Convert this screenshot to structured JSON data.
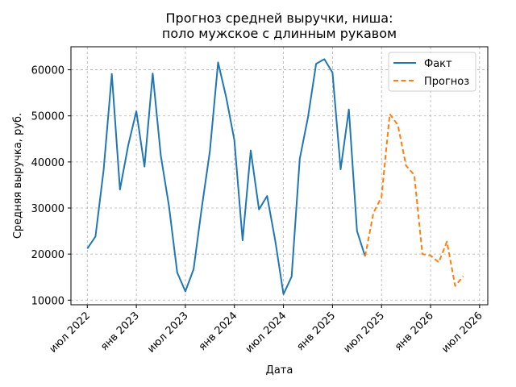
{
  "chart_data": {
    "type": "line",
    "title": [
      "Прогноз средней выручки, ниша:",
      "поло мужское с длинным рукавом"
    ],
    "xlabel": "Дата",
    "ylabel": "Средняя выручка, руб.",
    "ylim": [
      9000,
      65000
    ],
    "xlim": [
      "2022-05",
      "2026-08"
    ],
    "grid": true,
    "legend_position": "top-right",
    "y_ticks": [
      10000,
      20000,
      30000,
      40000,
      50000,
      60000
    ],
    "x_ticks": [
      {
        "date": "2022-07",
        "label": "июл 2022"
      },
      {
        "date": "2023-01",
        "label": "янв 2023"
      },
      {
        "date": "2023-07",
        "label": "июл 2023"
      },
      {
        "date": "2024-01",
        "label": "янв 2024"
      },
      {
        "date": "2024-07",
        "label": "июл 2024"
      },
      {
        "date": "2025-01",
        "label": "янв 2025"
      },
      {
        "date": "2025-07",
        "label": "июл 2025"
      },
      {
        "date": "2026-01",
        "label": "янв 2026"
      },
      {
        "date": "2026-07",
        "label": "июл 2026"
      }
    ],
    "series": [
      {
        "name": "Факт",
        "color": "#1f77b4",
        "style": "solid",
        "x": [
          "2022-07",
          "2022-08",
          "2022-09",
          "2022-10",
          "2022-11",
          "2022-12",
          "2023-01",
          "2023-02",
          "2023-03",
          "2023-04",
          "2023-05",
          "2023-06",
          "2023-07",
          "2023-08",
          "2023-09",
          "2023-10",
          "2023-11",
          "2023-12",
          "2024-01",
          "2024-02",
          "2024-03",
          "2024-04",
          "2024-05",
          "2024-06",
          "2024-07",
          "2024-08",
          "2024-09",
          "2024-10",
          "2024-11",
          "2024-12",
          "2025-01",
          "2025-02",
          "2025-03",
          "2025-04",
          "2025-05"
        ],
        "values": [
          21200,
          23800,
          38200,
          59100,
          34000,
          43600,
          51000,
          39000,
          59200,
          41300,
          30400,
          16000,
          11900,
          16700,
          30000,
          42300,
          61600,
          54000,
          44700,
          23000,
          42500,
          29700,
          32600,
          22900,
          11300,
          15100,
          40700,
          49700,
          61300,
          62300,
          59400,
          38400,
          51400,
          25000,
          19500
        ]
      },
      {
        "name": "Прогноз",
        "color": "#ff7f0e",
        "style": "dashed",
        "x": [
          "2025-05",
          "2025-06",
          "2025-07",
          "2025-08",
          "2025-09",
          "2025-10",
          "2025-11",
          "2025-12",
          "2026-01",
          "2026-02",
          "2026-03",
          "2026-04",
          "2026-05"
        ],
        "values": [
          19500,
          28900,
          32400,
          50400,
          48000,
          39200,
          37200,
          20000,
          19700,
          18200,
          22700,
          13100,
          15200
        ]
      }
    ]
  }
}
